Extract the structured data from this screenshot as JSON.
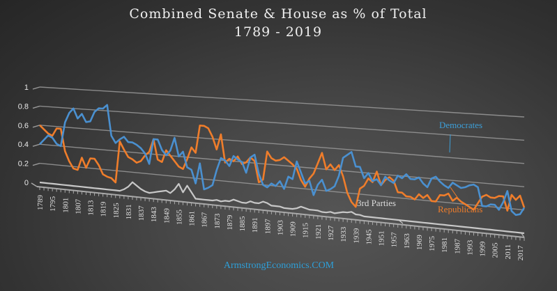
{
  "chart_data": {
    "type": "line",
    "title": "Combined Senate & House as % of Total",
    "subtitle": "1789 - 2019",
    "xlabel": "",
    "ylabel": "",
    "ylim": [
      0,
      1
    ],
    "yticks": [
      "0",
      "0.2",
      "0.4",
      "0.6",
      "0.8",
      "1"
    ],
    "x_tick_labels": [
      "1789",
      "1795",
      "1801",
      "1807",
      "1813",
      "1819",
      "1825",
      "1831",
      "1837",
      "1843",
      "1849",
      "1855",
      "1861",
      "1867",
      "1873",
      "1879",
      "1885",
      "1891",
      "1897",
      "1903",
      "1909",
      "1915",
      "1921",
      "1927",
      "1933",
      "1939",
      "1945",
      "1951",
      "1957",
      "1963",
      "1969",
      "1975",
      "1981",
      "1987",
      "1993",
      "1999",
      "2005",
      "2011",
      "2017"
    ],
    "grid": true,
    "legend": "inline-labels",
    "x": [
      1789,
      1791,
      1793,
      1795,
      1797,
      1799,
      1801,
      1803,
      1805,
      1807,
      1809,
      1811,
      1813,
      1815,
      1817,
      1819,
      1821,
      1823,
      1825,
      1827,
      1829,
      1831,
      1833,
      1835,
      1837,
      1839,
      1841,
      1843,
      1845,
      1847,
      1849,
      1851,
      1853,
      1855,
      1857,
      1859,
      1861,
      1863,
      1865,
      1867,
      1869,
      1871,
      1873,
      1875,
      1877,
      1879,
      1881,
      1883,
      1885,
      1887,
      1889,
      1891,
      1893,
      1895,
      1897,
      1899,
      1901,
      1903,
      1905,
      1907,
      1909,
      1911,
      1913,
      1915,
      1917,
      1919,
      1921,
      1923,
      1925,
      1927,
      1929,
      1931,
      1933,
      1935,
      1937,
      1939,
      1941,
      1943,
      1945,
      1947,
      1949,
      1951,
      1953,
      1955,
      1957,
      1959,
      1961,
      1963,
      1965,
      1967,
      1969,
      1971,
      1973,
      1975,
      1977,
      1979,
      1981,
      1983,
      1985,
      1987,
      1989,
      1991,
      1993,
      1995,
      1997,
      1999,
      2001,
      2003,
      2005,
      2007,
      2009,
      2011,
      2013,
      2015,
      2017,
      2019
    ],
    "series": [
      {
        "name": "Democrates",
        "color": "#4a90d0",
        "values": [
          0.4,
          0.45,
          0.5,
          0.48,
          0.42,
          0.4,
          0.65,
          0.75,
          0.8,
          0.7,
          0.75,
          0.67,
          0.68,
          0.78,
          0.82,
          0.82,
          0.86,
          0.55,
          0.48,
          0.52,
          0.55,
          0.5,
          0.5,
          0.48,
          0.45,
          0.4,
          0.3,
          0.55,
          0.55,
          0.45,
          0.4,
          0.45,
          0.58,
          0.4,
          0.45,
          0.3,
          0.28,
          0.15,
          0.35,
          0.1,
          0.12,
          0.15,
          0.3,
          0.42,
          0.4,
          0.35,
          0.45,
          0.42,
          0.4,
          0.3,
          0.45,
          0.48,
          0.3,
          0.2,
          0.18,
          0.22,
          0.2,
          0.25,
          0.18,
          0.3,
          0.28,
          0.45,
          0.35,
          0.25,
          0.28,
          0.15,
          0.25,
          0.3,
          0.2,
          0.22,
          0.25,
          0.35,
          0.52,
          0.55,
          0.58,
          0.45,
          0.45,
          0.35,
          0.4,
          0.33,
          0.35,
          0.3,
          0.38,
          0.35,
          0.33,
          0.4,
          0.38,
          0.42,
          0.38,
          0.38,
          0.4,
          0.35,
          0.32,
          0.4,
          0.42,
          0.38,
          0.35,
          0.33,
          0.38,
          0.36,
          0.34,
          0.35,
          0.37,
          0.38,
          0.36,
          0.2,
          0.2,
          0.22,
          0.22,
          0.18,
          0.25,
          0.35,
          0.18,
          0.15,
          0.16,
          0.22
        ]
      },
      {
        "name": "Republicans",
        "color": "#ef7d2b",
        "values": [
          0.6,
          0.56,
          0.52,
          0.5,
          0.58,
          0.58,
          0.35,
          0.25,
          0.18,
          0.17,
          0.3,
          0.2,
          0.3,
          0.3,
          0.24,
          0.15,
          0.13,
          0.12,
          0.08,
          0.5,
          0.42,
          0.35,
          0.33,
          0.3,
          0.32,
          0.38,
          0.42,
          0.55,
          0.35,
          0.33,
          0.45,
          0.4,
          0.35,
          0.3,
          0.28,
          0.38,
          0.5,
          0.45,
          0.72,
          0.72,
          0.7,
          0.62,
          0.5,
          0.65,
          0.38,
          0.42,
          0.4,
          0.45,
          0.38,
          0.4,
          0.45,
          0.42,
          0.22,
          0.25,
          0.52,
          0.46,
          0.44,
          0.45,
          0.48,
          0.45,
          0.42,
          0.38,
          0.28,
          0.22,
          0.3,
          0.35,
          0.45,
          0.55,
          0.4,
          0.45,
          0.4,
          0.45,
          0.35,
          0.2,
          0.12,
          0.08,
          0.25,
          0.28,
          0.35,
          0.32,
          0.42,
          0.3,
          0.35,
          0.38,
          0.35,
          0.25,
          0.25,
          0.22,
          0.22,
          0.2,
          0.25,
          0.22,
          0.25,
          0.2,
          0.2,
          0.26,
          0.26,
          0.28,
          0.22,
          0.25,
          0.22,
          0.2,
          0.18,
          0.16,
          0.22,
          0.28,
          0.3,
          0.28,
          0.28,
          0.3,
          0.3,
          0.18,
          0.32,
          0.28,
          0.32,
          0.22
        ]
      },
      {
        "name": "3rd Parties",
        "color": "#c8c8c8",
        "values": [
          0.0,
          0.0,
          0.0,
          0.0,
          0.0,
          0.0,
          0.0,
          0.0,
          0.0,
          0.0,
          0.0,
          0.0,
          0.0,
          0.0,
          0.0,
          0.0,
          0.0,
          0.0,
          0.0,
          0.0,
          0.02,
          0.05,
          0.1,
          0.07,
          0.04,
          0.02,
          0.01,
          0.02,
          0.03,
          0.04,
          0.05,
          0.03,
          0.07,
          0.13,
          0.05,
          0.12,
          0.06,
          0.0,
          0.0,
          0.0,
          0.0,
          0.0,
          0.01,
          0.0,
          0.01,
          0.01,
          0.03,
          0.02,
          0.01,
          0.01,
          0.03,
          0.02,
          0.02,
          0.04,
          0.03,
          0.01,
          0.01,
          0.01,
          0.0,
          0.0,
          0.0,
          0.01,
          0.03,
          0.02,
          0.01,
          0.01,
          0.01,
          0.0,
          0.0,
          0.01,
          0.0,
          0.01,
          0.02,
          0.02,
          0.03,
          0.01,
          0.01,
          0.0,
          0.0,
          0.0,
          0.0,
          0.0,
          0.0,
          0.0,
          0.0,
          0.0,
          0.0,
          0.0,
          0.0,
          0.0,
          0.0,
          0.0,
          0.0,
          0.0,
          0.0,
          0.0,
          0.0,
          0.0,
          0.0,
          0.0,
          0.0,
          0.0,
          0.0,
          0.0,
          0.0,
          0.0,
          0.0,
          0.0,
          0.0,
          0.0,
          0.0,
          0.0,
          0.0,
          0.0,
          0.0,
          0.0
        ]
      }
    ],
    "annotations": [
      "Democrates",
      "Republicans",
      "3rd Parties"
    ]
  },
  "footer": {
    "credit": "ArmstrongEconomics.COM"
  }
}
